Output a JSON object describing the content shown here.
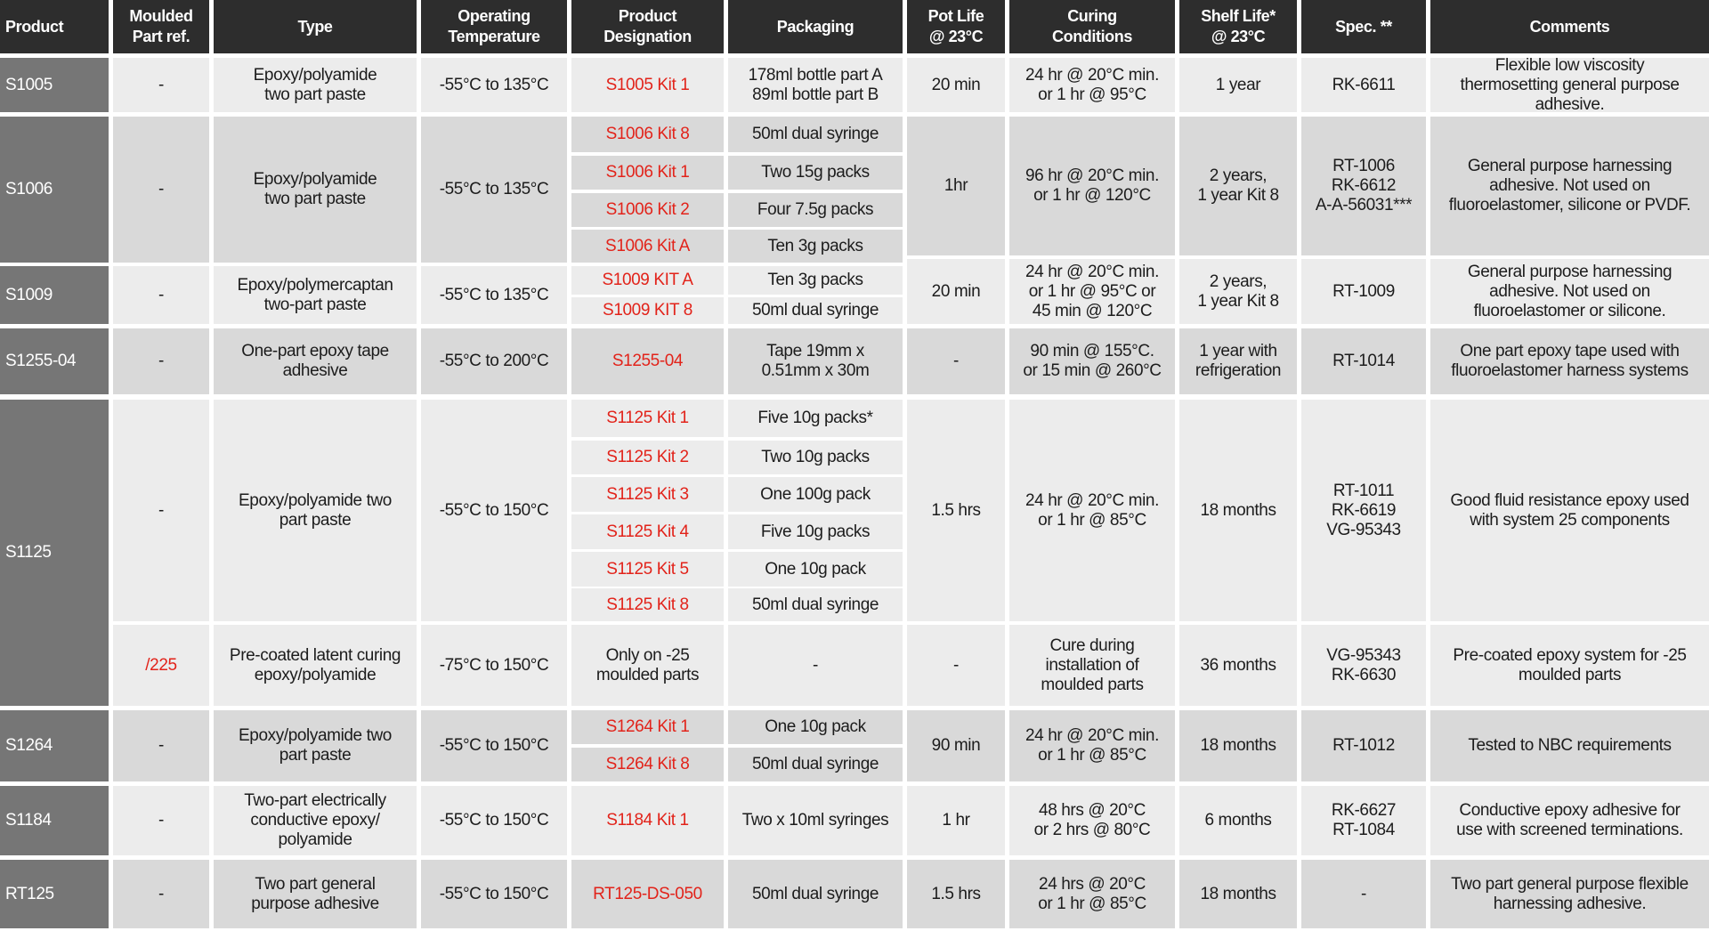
{
  "header": {
    "columns": [
      "Product",
      "Moulded\nPart ref.",
      "Type",
      "Operating\nTemperature",
      "Product\nDesignation",
      "Packaging",
      "Pot Life\n@ 23°C",
      "Curing\nConditions",
      "Shelf Life*\n@ 23°C",
      "Spec. **",
      "Comments"
    ]
  },
  "colors": {
    "header_bg": "#2d2d2d",
    "product_bg": "#767676",
    "row_light": "#ececec",
    "row_dark": "#d9d9d9",
    "designation_red": "#e2231a"
  },
  "rows": [
    {
      "product": "S1005",
      "moulded_ref": "-",
      "type": "Epoxy/polyamide\ntwo part paste",
      "temperature": "-55°C to 135°C",
      "kits": [
        {
          "designation": "S1005 Kit 1",
          "packaging": "178ml bottle part A\n89ml bottle part B"
        }
      ],
      "pot_life": "20 min",
      "curing": "24 hr @ 20°C min.\nor 1 hr @ 95°C",
      "shelf_life": "1 year",
      "spec": "RK-6611",
      "comments": "Flexible low viscosity\nthermosetting general purpose\nadhesive."
    },
    {
      "product": "S1006",
      "moulded_ref": "-",
      "type": "Epoxy/polyamide\ntwo part paste",
      "temperature": "-55°C to 135°C",
      "kits": [
        {
          "designation": "S1006 Kit 8",
          "packaging": "50ml dual syringe"
        },
        {
          "designation": "S1006 Kit 1",
          "packaging": "Two 15g packs"
        },
        {
          "designation": "S1006 Kit 2",
          "packaging": "Four 7.5g packs"
        },
        {
          "designation": "S1006 Kit A",
          "packaging": "Ten 3g packs"
        }
      ],
      "pot_life": "1hr",
      "curing": "96 hr @ 20°C min.\nor 1 hr @ 120°C",
      "shelf_life": "2 years,\n1 year Kit 8",
      "spec": "RT-1006\nRK-6612\nA-A-56031***",
      "comments": "General purpose harnessing\nadhesive. Not used on\nfluoroelastomer, silicone or PVDF."
    },
    {
      "product": "S1009",
      "moulded_ref": "-",
      "type": "Epoxy/polymercaptan\ntwo-part paste",
      "temperature": "-55°C to 135°C",
      "kits": [
        {
          "designation": "S1009 KIT A",
          "packaging": "Ten 3g packs"
        },
        {
          "designation": "S1009 KIT 8",
          "packaging": "50ml dual syringe"
        }
      ],
      "pot_life": "20 min",
      "curing": "24 hr @ 20°C min.\nor 1 hr @ 95°C or\n45 min @ 120°C",
      "shelf_life": "2 years,\n1 year Kit 8",
      "spec": "RT-1009",
      "comments": "General purpose harnessing\nadhesive. Not used on\nfluoroelastomer or silicone."
    },
    {
      "product": "S1255-04",
      "moulded_ref": "-",
      "type": "One-part epoxy tape\nadhesive",
      "temperature": "-55°C to 200°C",
      "kits": [
        {
          "designation": "S1255-04",
          "packaging": "Tape 19mm x\n0.51mm x 30m"
        }
      ],
      "pot_life": "-",
      "curing": "90 min @ 155°C.\nor 15 min @ 260°C",
      "shelf_life": "1 year with\nrefrigeration",
      "spec": "RT-1014",
      "comments": "One part epoxy tape used with\nfluoroelastomer harness systems"
    },
    {
      "product": "S1125",
      "moulded_ref": "-",
      "type": "Epoxy/polyamide two\npart paste",
      "temperature": "-55°C to 150°C",
      "kits": [
        {
          "designation": "S1125 Kit 1",
          "packaging": "Five 10g packs*"
        },
        {
          "designation": "S1125 Kit 2",
          "packaging": "Two 10g packs"
        },
        {
          "designation": "S1125 Kit 3",
          "packaging": "One 100g pack"
        },
        {
          "designation": "S1125 Kit 4",
          "packaging": "Five 10g packs"
        },
        {
          "designation": "S1125 Kit 5",
          "packaging": "One 10g pack"
        },
        {
          "designation": "S1125 Kit 8",
          "packaging": "50ml dual syringe"
        }
      ],
      "pot_life": "1.5 hrs",
      "curing": "24 hr @ 20°C min.\nor 1 hr @ 85°C",
      "shelf_life": "18 months",
      "spec": "RT-1011\nRK-6619\nVG-95343",
      "comments": "Good fluid resistance epoxy used\nwith system 25 components"
    },
    {
      "product": "",
      "moulded_ref": "/225",
      "type": "Pre-coated latent curing\nepoxy/polyamide",
      "temperature": "-75°C to 150°C",
      "kits": [
        {
          "designation": "Only on -25\nmoulded parts",
          "packaging": "-"
        }
      ],
      "pot_life": "-",
      "curing": "Cure during\ninstallation of\nmoulded parts",
      "shelf_life": "36 months",
      "spec": "VG-95343\nRK-6630",
      "comments": "Pre-coated epoxy system for -25\nmoulded parts"
    },
    {
      "product": "S1264",
      "moulded_ref": "-",
      "type": "Epoxy/polyamide two\npart paste",
      "temperature": "-55°C to 150°C",
      "kits": [
        {
          "designation": "S1264 Kit 1",
          "packaging": "One 10g pack"
        },
        {
          "designation": "S1264 Kit 8",
          "packaging": "50ml dual syringe"
        }
      ],
      "pot_life": "90 min",
      "curing": "24 hr @ 20°C min.\nor 1 hr @ 85°C",
      "shelf_life": "18 months",
      "spec": "RT-1012",
      "comments": "Tested to NBC requirements"
    },
    {
      "product": "S1184",
      "moulded_ref": "-",
      "type": "Two-part electrically\nconductive epoxy/\npolyamide",
      "temperature": "-55°C to 150°C",
      "kits": [
        {
          "designation": "S1184 Kit 1",
          "packaging": "Two x 10ml syringes"
        }
      ],
      "pot_life": "1 hr",
      "curing": "48 hrs @ 20°C\nor 2 hrs @ 80°C",
      "shelf_life": "6 months",
      "spec": "RK-6627\nRT-1084",
      "comments": "Conductive epoxy adhesive for\nuse with screened terminations."
    },
    {
      "product": "RT125",
      "moulded_ref": "-",
      "type": "Two part general\npurpose adhesive",
      "temperature": "-55°C to 150°C",
      "kits": [
        {
          "designation": "RT125-DS-050",
          "packaging": "50ml dual syringe"
        }
      ],
      "pot_life": "1.5 hrs",
      "curing": "24 hrs @ 20°C\nor 1 hr @ 85°C",
      "shelf_life": "18 months",
      "spec": "-",
      "comments": "Two part general purpose flexible\nharnessing adhesive."
    }
  ]
}
